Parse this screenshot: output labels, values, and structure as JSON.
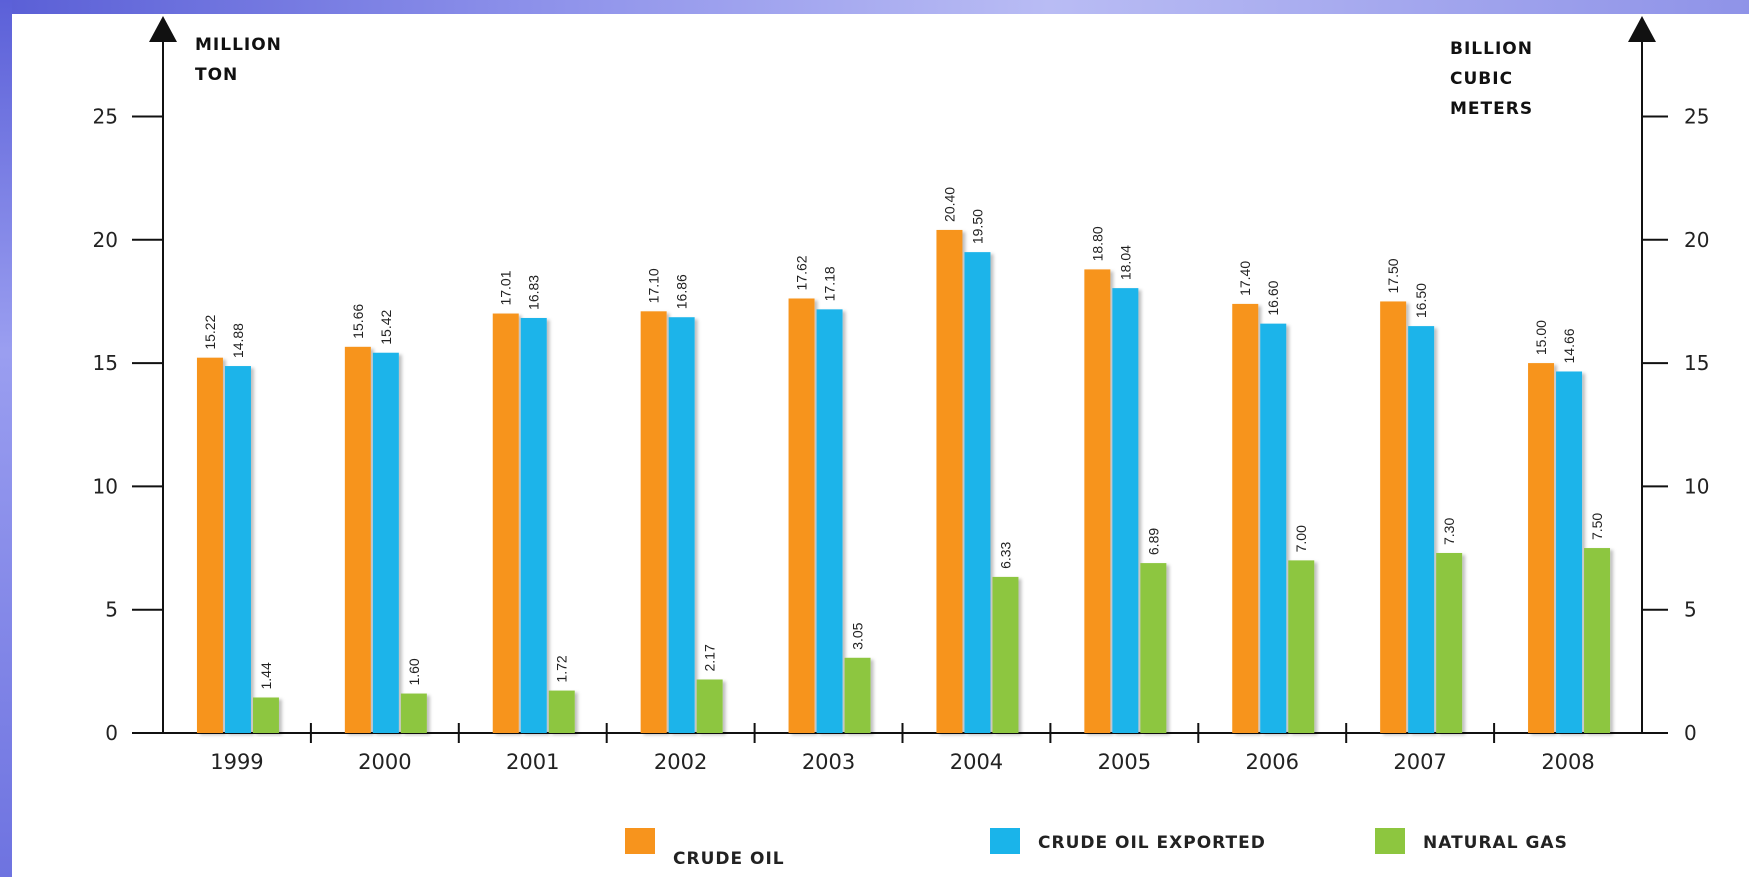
{
  "chart_data": {
    "type": "bar",
    "categories": [
      "1999",
      "2000",
      "2001",
      "2002",
      "2003",
      "2004",
      "2005",
      "2006",
      "2007",
      "2008"
    ],
    "series": [
      {
        "name": "CRUDE OIL",
        "color": "#f7941d",
        "values": [
          15.22,
          15.66,
          17.01,
          17.1,
          17.62,
          20.4,
          18.8,
          17.4,
          17.5,
          15.0
        ],
        "labels": [
          "15.22",
          "15.66",
          "17.01",
          "17.10",
          "17.62",
          "20.40",
          "18.80",
          "17.40",
          "17.50",
          "15.00"
        ]
      },
      {
        "name": "CRUDE OIL EXPORTED",
        "color": "#1ab4ea",
        "values": [
          14.88,
          15.42,
          16.83,
          16.86,
          17.18,
          19.5,
          18.04,
          16.6,
          16.5,
          14.66
        ],
        "labels": [
          "14.88",
          "15.42",
          "16.83",
          "16.86",
          "17.18",
          "19.50",
          "18.04",
          "16.60",
          "16.50",
          "14.66"
        ]
      },
      {
        "name": "NATURAL GAS",
        "color": "#8dc63f",
        "values": [
          1.44,
          1.6,
          1.72,
          2.17,
          3.05,
          6.33,
          6.89,
          7.0,
          7.3,
          7.5
        ],
        "labels": [
          "1.44",
          "1.60",
          "1.72",
          "2.17",
          "3.05",
          "6.33",
          "6.89",
          "7.00",
          "7.30",
          "7.50"
        ]
      }
    ],
    "ylim": [
      0,
      25
    ],
    "yticks": [
      "0",
      "5",
      "10",
      "15",
      "20",
      "25"
    ],
    "y_left_label": [
      "MILLION",
      "TON"
    ],
    "y_right_label": [
      "BILLION",
      "CUBIC",
      "METERS"
    ],
    "legend_position": "bottom",
    "grid": false
  }
}
